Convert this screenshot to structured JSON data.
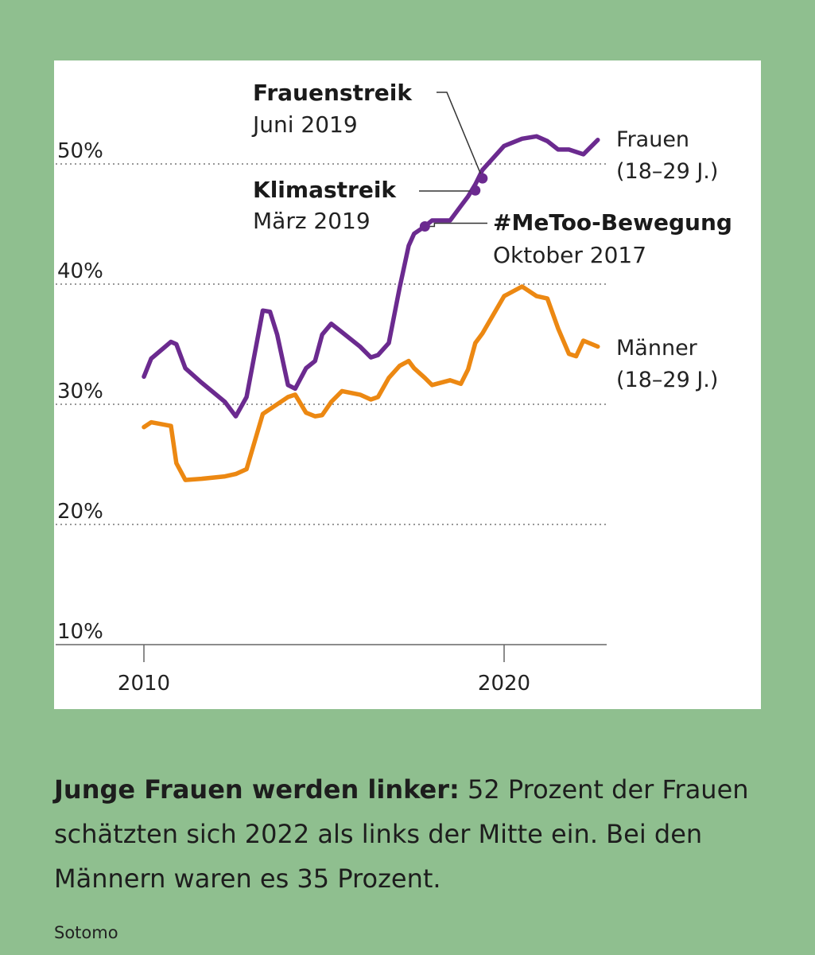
{
  "chart_data": {
    "type": "line",
    "title": "",
    "xlabel": "",
    "ylabel": "",
    "x_ticks": [
      {
        "value": 2010,
        "label": "2010"
      },
      {
        "value": 2020,
        "label": "2020"
      }
    ],
    "y_ticks": [
      {
        "value": 10,
        "label": "10%"
      },
      {
        "value": 20,
        "label": "20%"
      },
      {
        "value": 30,
        "label": "30%"
      },
      {
        "value": 40,
        "label": "40%"
      },
      {
        "value": 50,
        "label": "50%"
      }
    ],
    "xlim": [
      2007.5,
      2022.8
    ],
    "ylim": [
      10,
      52
    ],
    "series": [
      {
        "name": "Frauen",
        "label_line1": "Frauen",
        "label_line2": "(18–29 J.)",
        "color": "#6b2a8f",
        "x": [
          2010.0,
          2010.2,
          2010.75,
          2010.9,
          2011.15,
          2011.6,
          2012.25,
          2012.55,
          2012.85,
          2013.3,
          2013.5,
          2013.7,
          2014.0,
          2014.2,
          2014.5,
          2014.75,
          2014.95,
          2015.2,
          2015.5,
          2016.0,
          2016.3,
          2016.5,
          2016.8,
          2017.1,
          2017.35,
          2017.5,
          2017.8,
          2018.0,
          2018.5,
          2018.8,
          2019.0,
          2019.2,
          2019.4,
          2020.0,
          2020.5,
          2020.9,
          2021.2,
          2021.5,
          2021.8,
          2022.0,
          2022.2,
          2022.6
        ],
        "values": [
          32.3,
          33.8,
          35.2,
          35.0,
          33.0,
          31.8,
          30.2,
          29.0,
          30.6,
          37.8,
          37.7,
          35.8,
          31.6,
          31.3,
          33.0,
          33.6,
          35.8,
          36.7,
          36.0,
          34.8,
          33.9,
          34.1,
          35.1,
          39.7,
          43.2,
          44.2,
          44.8,
          45.3,
          45.3,
          46.5,
          47.3,
          48.3,
          49.5,
          51.5,
          52.1,
          52.3,
          51.9,
          51.2,
          51.2,
          51.0,
          50.8,
          52.0
        ]
      },
      {
        "name": "Männer",
        "label_line1": "Männer",
        "label_line2": "(18–29 J.)",
        "color": "#ec8812",
        "x": [
          2010.0,
          2010.2,
          2010.75,
          2010.9,
          2011.15,
          2011.6,
          2012.25,
          2012.55,
          2012.85,
          2013.3,
          2013.5,
          2013.7,
          2014.0,
          2014.2,
          2014.5,
          2014.75,
          2014.95,
          2015.2,
          2015.5,
          2016.0,
          2016.3,
          2016.5,
          2016.8,
          2017.1,
          2017.35,
          2017.5,
          2017.8,
          2018.0,
          2018.5,
          2018.8,
          2019.0,
          2019.2,
          2019.4,
          2020.0,
          2020.5,
          2020.9,
          2021.2,
          2021.5,
          2021.8,
          2022.0,
          2022.2,
          2022.6
        ],
        "values": [
          28.1,
          28.5,
          28.2,
          25.1,
          23.7,
          23.8,
          24.0,
          24.2,
          24.6,
          29.2,
          29.6,
          30.0,
          30.6,
          30.8,
          29.3,
          29.0,
          29.1,
          30.2,
          31.1,
          30.8,
          30.4,
          30.6,
          32.2,
          33.2,
          33.6,
          33.0,
          32.2,
          31.6,
          32.0,
          31.7,
          32.9,
          35.1,
          35.9,
          39.0,
          39.8,
          39.0,
          38.8,
          36.3,
          34.2,
          34.0,
          35.3,
          34.8
        ]
      }
    ],
    "annotations": [
      {
        "title": "#MeToo-Bewegung",
        "date": "Oktober 2017",
        "x": 2017.8,
        "y": 44.8
      },
      {
        "title": "Klimastreik",
        "date": "März 2019",
        "x": 2019.2,
        "y": 47.8
      },
      {
        "title": "Frauenstreik",
        "date": "Juni 2019",
        "x": 2019.4,
        "y": 48.8
      }
    ]
  },
  "caption": {
    "bold": "Junge Frauen werden linker:",
    "text": " 52 Prozent der Frauen schätzten sich 2022 als links der Mitte ein. Bei den Männern waren es 35 Prozent."
  },
  "source": "Sotomo"
}
